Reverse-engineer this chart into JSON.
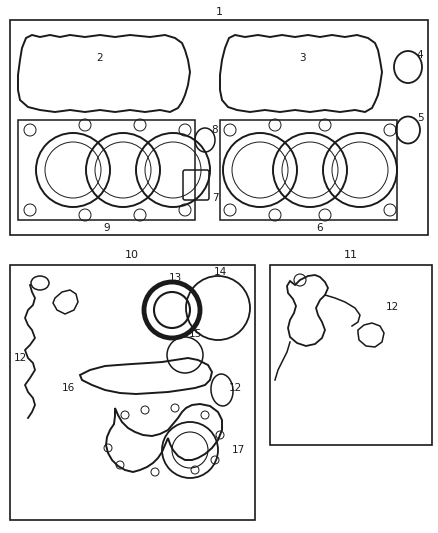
{
  "bg_color": "#ffffff",
  "line_color": "#1a1a1a",
  "text_color": "#1a1a1a",
  "fig_width": 4.38,
  "fig_height": 5.33,
  "dpi": 100
}
